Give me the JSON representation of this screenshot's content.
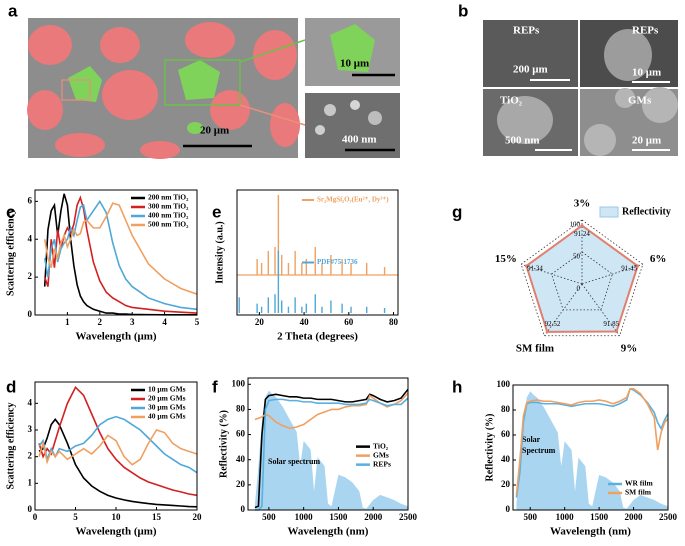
{
  "images": [
    {
      "panel": "a",
      "labels": [
        "10 μm",
        "400 nm",
        "20 μm"
      ]
    },
    {
      "panel": "b",
      "labels": [
        "REPs",
        "200 μm",
        "REPs",
        "10 μm",
        "TiO₂",
        "500 nm",
        "GMs",
        "20 μm"
      ]
    }
  ],
  "chart_data": [
    {
      "panel": "c",
      "type": "line",
      "xlabel": "Wavelength (μm)",
      "ylabel": "Scattering efficiency",
      "xlim": [
        0,
        5
      ],
      "ylim": [
        0,
        6.6
      ],
      "xticks": [
        1,
        2,
        3,
        4,
        5
      ],
      "yticks": [
        0,
        2,
        4,
        6
      ],
      "legend": "upper right",
      "x": [
        0.3,
        0.4,
        0.5,
        0.6,
        0.7,
        0.8,
        0.9,
        1.0,
        1.1,
        1.2,
        1.3,
        1.4,
        1.5,
        1.6,
        1.8,
        2.0,
        2.2,
        2.4,
        2.6,
        2.8,
        3.0,
        3.5,
        4.0,
        4.5,
        5.0
      ],
      "series": [
        {
          "name": "200 nm TiO₂",
          "color": "#000000",
          "values": [
            1.5,
            4.5,
            5.5,
            5.8,
            4.2,
            5.5,
            6.4,
            5.8,
            4.0,
            2.6,
            1.6,
            1.0,
            0.7,
            0.5,
            0.3,
            0.2,
            0.1,
            0.1,
            0.05,
            0.05,
            0.03,
            0.02,
            0.01,
            0.01,
            0.01
          ]
        },
        {
          "name": "300 nm TiO₂",
          "color": "#d42020",
          "values": [
            2.0,
            1.5,
            4.0,
            2.5,
            4.5,
            3.5,
            4.2,
            4.6,
            4.3,
            4.8,
            5.8,
            6.2,
            5.6,
            4.5,
            2.8,
            1.8,
            1.2,
            0.9,
            0.7,
            0.5,
            0.4,
            0.3,
            0.2,
            0.15,
            0.1
          ]
        },
        {
          "name": "400 nm TiO₂",
          "color": "#4ea8d8",
          "values": [
            3.0,
            2.0,
            3.5,
            4.0,
            2.8,
            3.5,
            3.8,
            4.0,
            4.6,
            4.2,
            5.0,
            5.7,
            5.8,
            5.0,
            5.5,
            6.0,
            5.4,
            3.8,
            2.6,
            1.9,
            1.5,
            0.9,
            0.6,
            0.4,
            0.3
          ]
        },
        {
          "name": "500 nm TiO₂",
          "color": "#f0a060",
          "values": [
            4.0,
            3.0,
            2.5,
            3.5,
            3.0,
            3.8,
            4.2,
            3.6,
            4.0,
            4.5,
            4.2,
            4.3,
            4.9,
            5.0,
            4.6,
            4.6,
            5.2,
            5.9,
            5.8,
            5.0,
            4.2,
            2.7,
            1.9,
            1.4,
            1.1
          ]
        }
      ]
    },
    {
      "panel": "d",
      "type": "line",
      "xlabel": "Wavelength (μm)",
      "ylabel": "Scattering efficiency",
      "xlim": [
        0,
        20
      ],
      "ylim": [
        0,
        4.8
      ],
      "xticks": [
        0,
        5,
        10,
        15,
        20
      ],
      "yticks": [
        0,
        1,
        2,
        3,
        4
      ],
      "legend": "upper right",
      "x": [
        0.5,
        1,
        1.5,
        2,
        2.5,
        3,
        4,
        5,
        6,
        7,
        8,
        9,
        10,
        11,
        12,
        13,
        14,
        15,
        16,
        17,
        18,
        19,
        20
      ],
      "series": [
        {
          "name": "10 μm GMs",
          "color": "#000000",
          "values": [
            2.2,
            2.3,
            2.7,
            3.2,
            3.4,
            3.2,
            2.5,
            1.7,
            1.2,
            0.9,
            0.7,
            0.55,
            0.45,
            0.38,
            0.32,
            0.28,
            0.24,
            0.21,
            0.19,
            0.17,
            0.15,
            0.13,
            0.12
          ]
        },
        {
          "name": "20 μm GMs",
          "color": "#d42020",
          "values": [
            2.5,
            2.0,
            2.3,
            2.1,
            2.6,
            3.1,
            4.0,
            4.6,
            4.3,
            3.6,
            2.9,
            2.3,
            1.9,
            1.6,
            1.4,
            1.2,
            1.05,
            0.95,
            0.85,
            0.75,
            0.68,
            0.6,
            0.55
          ]
        },
        {
          "name": "30 μm GMs",
          "color": "#4ea8d8",
          "values": [
            2.4,
            2.6,
            1.9,
            2.3,
            2.0,
            2.3,
            2.2,
            2.4,
            2.5,
            2.8,
            3.2,
            3.4,
            3.5,
            3.4,
            3.2,
            3.0,
            2.7,
            2.4,
            2.1,
            1.9,
            1.7,
            1.6,
            1.4
          ]
        },
        {
          "name": "40 μm GMs",
          "color": "#f0a060",
          "values": [
            2.0,
            2.5,
            1.8,
            2.2,
            2.0,
            2.2,
            1.9,
            2.1,
            2.3,
            2.1,
            2.4,
            2.8,
            2.6,
            2.0,
            1.7,
            1.9,
            2.5,
            3.0,
            2.9,
            2.5,
            2.3,
            2.2,
            2.1
          ]
        }
      ]
    },
    {
      "panel": "e",
      "type": "xrd",
      "xlabel": "2 Theta (degrees)",
      "ylabel": "Intensity (a.u.)",
      "xlim": [
        10,
        82
      ],
      "xticks": [
        20,
        40,
        60,
        80
      ],
      "ylim": [
        0,
        100
      ],
      "series": [
        {
          "name": "Sr₂MgSi₂O₇(Eu²⁺, Dy³⁺)",
          "color": "#f0a060",
          "x": [
            19,
            21,
            24,
            27,
            28.5,
            30,
            33,
            36,
            39,
            41,
            45,
            48,
            52,
            57,
            61,
            68,
            76
          ],
          "values": [
            20,
            15,
            30,
            35,
            100,
            25,
            15,
            30,
            15,
            20,
            35,
            15,
            25,
            20,
            15,
            15,
            10
          ]
        },
        {
          "name": "PDF#75-1736",
          "color": "#4ea8d8",
          "x": [
            11,
            19,
            21,
            24,
            27,
            28.5,
            30,
            33,
            36,
            39,
            41,
            45,
            48,
            52,
            57,
            61,
            68,
            76
          ],
          "values": [
            25,
            15,
            10,
            25,
            30,
            100,
            20,
            10,
            25,
            10,
            15,
            30,
            10,
            20,
            15,
            10,
            10,
            8
          ]
        }
      ]
    },
    {
      "panel": "f",
      "type": "line",
      "xlabel": "Wavelength (nm)",
      "ylabel": "Reflectivity (%)",
      "xlim": [
        200,
        2500
      ],
      "ylim": [
        0,
        105
      ],
      "xticks": [
        500,
        1000,
        1500,
        2000,
        2500
      ],
      "yticks": [
        0,
        20,
        40,
        60,
        80,
        100
      ],
      "legend": "center right",
      "x": [
        300,
        350,
        400,
        450,
        500,
        600,
        700,
        800,
        900,
        1000,
        1100,
        1200,
        1300,
        1400,
        1500,
        1600,
        1700,
        1800,
        1900,
        1950,
        2000,
        2100,
        2200,
        2300,
        2400,
        2500
      ],
      "series": [
        {
          "name": "TiO₂",
          "color": "#000000",
          "values": [
            2,
            3,
            60,
            88,
            91,
            92,
            91,
            90,
            90,
            89,
            89,
            88,
            88,
            88,
            87,
            86,
            86,
            87,
            88,
            92,
            91,
            88,
            86,
            87,
            89,
            96
          ]
        },
        {
          "name": "GMs",
          "color": "#f0a060",
          "values": [
            72,
            73,
            74,
            76,
            75,
            70,
            67,
            65,
            66,
            68,
            72,
            76,
            78,
            80,
            80,
            82,
            83,
            83,
            84,
            91,
            89,
            85,
            82,
            84,
            87,
            93
          ]
        },
        {
          "name": "REPs",
          "color": "#5ab0e0",
          "values": [
            0,
            0,
            3,
            80,
            87,
            88,
            88,
            87,
            87,
            86,
            86,
            85,
            85,
            85,
            85,
            84,
            84,
            84,
            85,
            88,
            87,
            85,
            83,
            84,
            84,
            89
          ]
        }
      ],
      "solar": {
        "name_lines": [
          "Solar spectrum"
        ],
        "color": "#a9d5f0",
        "x": [
          300,
          350,
          400,
          450,
          500,
          550,
          600,
          700,
          800,
          900,
          950,
          1000,
          1100,
          1150,
          1200,
          1300,
          1350,
          1400,
          1500,
          1600,
          1700,
          1800,
          1850,
          1900,
          2000,
          2100,
          2200,
          2300,
          2400,
          2500
        ],
        "values": [
          5,
          35,
          70,
          90,
          95,
          92,
          90,
          82,
          72,
          62,
          35,
          55,
          48,
          15,
          42,
          35,
          5,
          3,
          28,
          26,
          22,
          15,
          2,
          1,
          8,
          12,
          10,
          8,
          5,
          3
        ]
      }
    },
    {
      "panel": "g",
      "type": "radar",
      "axes": [
        "3%",
        "6%",
        "9%",
        "SM film",
        "15%"
      ],
      "rlim": [
        0,
        100
      ],
      "rticks": [
        0,
        50,
        100
      ],
      "series": [
        {
          "name": "Reflectivity",
          "color": "#e07f6e",
          "fill": "#cfe6f5",
          "values": [
            91.24,
            91.45,
            91.85,
            92.52,
            91.34
          ]
        }
      ]
    },
    {
      "panel": "h",
      "type": "line",
      "xlabel": "Wavelength (nm)",
      "ylabel": "Reflectivity (%)",
      "xlim": [
        250,
        2500
      ],
      "ylim": [
        0,
        100
      ],
      "xticks": [
        500,
        1000,
        1500,
        2000,
        2500
      ],
      "yticks": [
        0,
        20,
        40,
        60,
        80,
        100
      ],
      "legend": "lower right",
      "x": [
        300,
        350,
        400,
        450,
        500,
        600,
        700,
        800,
        900,
        1000,
        1100,
        1200,
        1300,
        1400,
        1500,
        1600,
        1700,
        1800,
        1900,
        1950,
        2000,
        2100,
        2200,
        2300,
        2350,
        2400,
        2450,
        2500
      ],
      "series": [
        {
          "name": "WR film",
          "color": "#5ab0e0",
          "values": [
            10,
            30,
            70,
            85,
            86,
            86,
            85,
            85,
            85,
            84,
            83,
            84,
            85,
            85,
            85,
            84,
            83,
            85,
            88,
            97,
            96,
            92,
            86,
            78,
            70,
            65,
            72,
            77
          ]
        },
        {
          "name": "SM film",
          "color": "#f0a060",
          "values": [
            12,
            40,
            75,
            86,
            87,
            88,
            87,
            87,
            86,
            85,
            84,
            86,
            87,
            87,
            88,
            87,
            85,
            87,
            90,
            97,
            97,
            93,
            85,
            74,
            48,
            62,
            70,
            73
          ]
        }
      ],
      "solar": {
        "name_lines": [
          "Solar",
          "Spectrum"
        ],
        "color": "#a9d5f0",
        "x": [
          300,
          350,
          400,
          450,
          500,
          550,
          600,
          700,
          800,
          900,
          950,
          1000,
          1100,
          1150,
          1200,
          1300,
          1350,
          1400,
          1500,
          1600,
          1700,
          1800,
          1850,
          1900,
          2000,
          2100,
          2200,
          2300,
          2400,
          2500
        ],
        "values": [
          5,
          35,
          70,
          90,
          95,
          92,
          90,
          82,
          72,
          62,
          35,
          55,
          48,
          15,
          42,
          35,
          5,
          3,
          28,
          26,
          22,
          15,
          2,
          1,
          8,
          12,
          10,
          8,
          5,
          3
        ]
      }
    }
  ]
}
